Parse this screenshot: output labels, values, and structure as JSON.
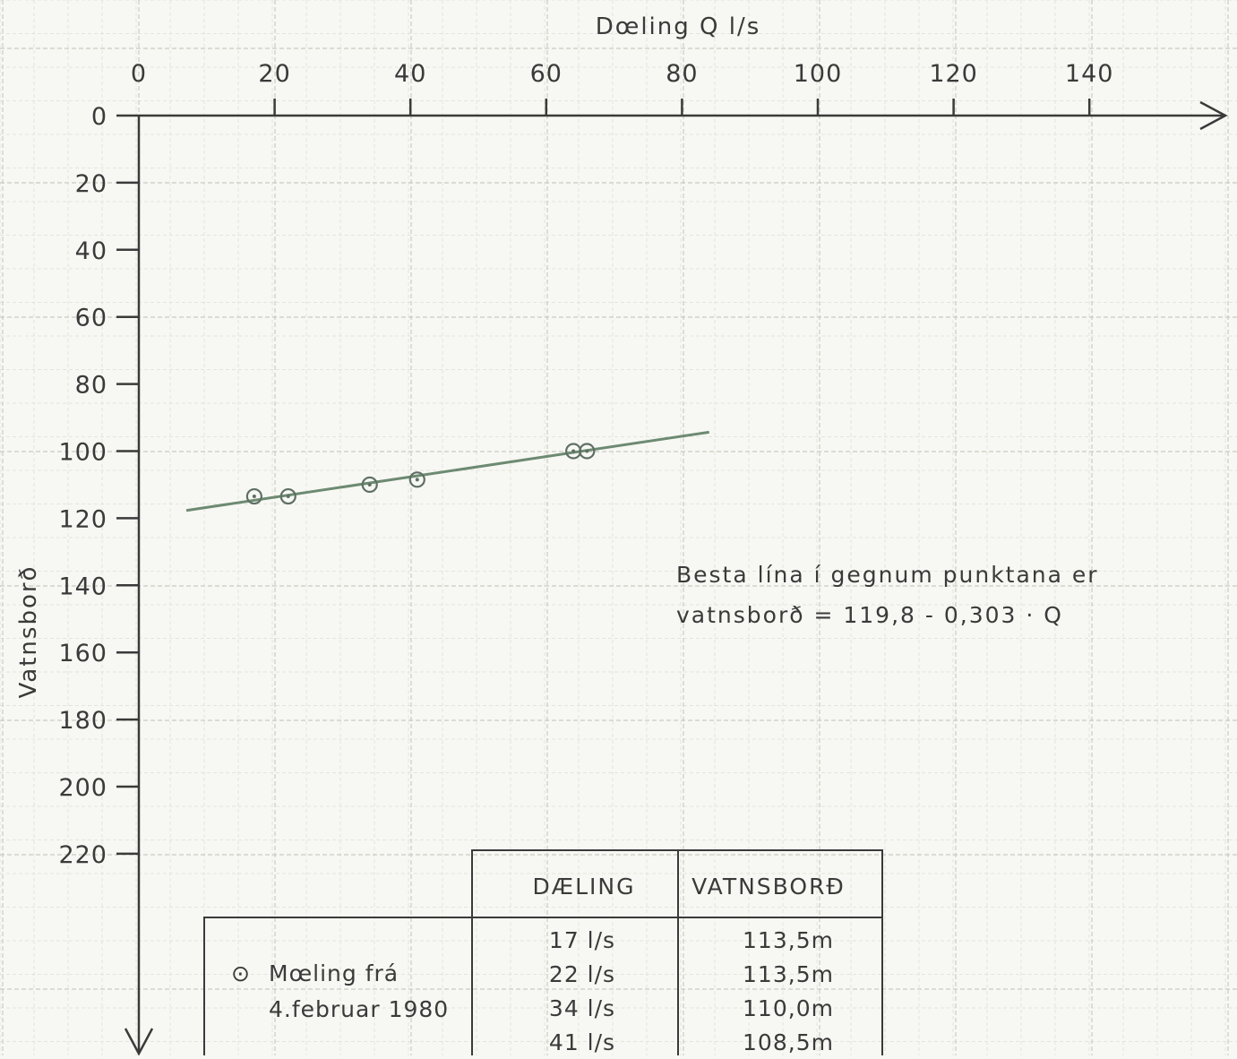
{
  "chart_data": {
    "type": "scatter",
    "xlabel": "Dœling  Q l/s",
    "ylabel": "Vatnsborð",
    "xlim": [
      0,
      160
    ],
    "ylim": [
      0,
      240
    ],
    "x_ticks": [
      "0",
      "20",
      "40",
      "60",
      "80",
      "100",
      "120",
      "140"
    ],
    "y_ticks": [
      "0",
      "20",
      "40",
      "60",
      "80",
      "100",
      "120",
      "140",
      "160",
      "180",
      "200",
      "220"
    ],
    "x_axis_position": "top",
    "y_axis_inverted": true,
    "grid": true,
    "series": [
      {
        "marker": "circle-dot",
        "points": [
          {
            "x": 17,
            "y": 113.5
          },
          {
            "x": 22,
            "y": 113.5
          },
          {
            "x": 34,
            "y": 110.0
          },
          {
            "x": 41,
            "y": 108.5
          },
          {
            "x": 64,
            "y": 100
          },
          {
            "x": 66,
            "y": 100
          }
        ]
      }
    ],
    "fit_line": {
      "intercept": 119.8,
      "slope": -0.303,
      "x_range": [
        7,
        84
      ]
    },
    "annotation": {
      "line1": "Besta lína í gegnum punktana er",
      "line2": "vatnsborð = 119,8 - 0,303 · Q"
    },
    "table": {
      "headers": [
        "DÆLING",
        "VATNSBORÐ"
      ],
      "legend_symbol": "⊙",
      "legend_line1": "Mœling frá",
      "legend_line2": "4.februar 1980",
      "rows": [
        [
          "17 l/s",
          "113,5m"
        ],
        [
          "22 l/s",
          "113,5m"
        ],
        [
          "34 l/s",
          "110,0m"
        ],
        [
          "41 l/s",
          "108,5m"
        ]
      ]
    },
    "colors": {
      "paper": "#f7f8f3",
      "grid_major": "#c9ccc2",
      "grid_minor": "#e3e5dd",
      "ink": "#3a3a3a",
      "fit_line": "#6d8a72",
      "marker": "#5f6f63"
    }
  }
}
